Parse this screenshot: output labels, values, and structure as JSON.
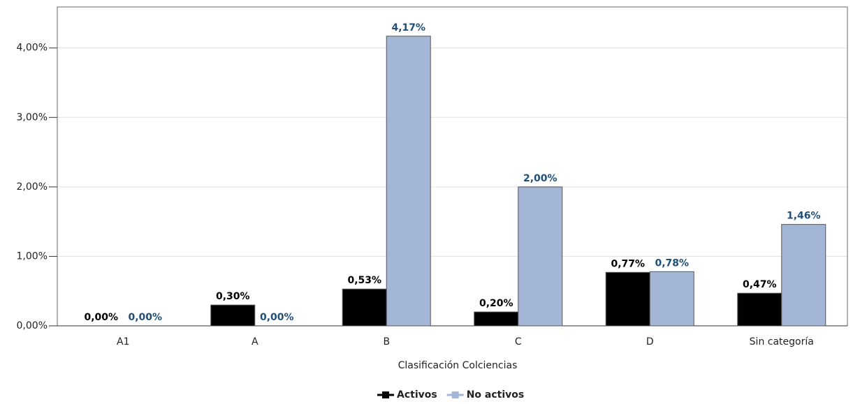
{
  "chart_data": {
    "type": "bar",
    "x_label": "Clasificación Colciencias",
    "categories": [
      "A1",
      "A",
      "B",
      "C",
      "D",
      "Sin categoría"
    ],
    "series": [
      {
        "name": "Activos",
        "color": "#000000",
        "label_color": "#000000",
        "values": [
          0,
          0.3,
          0.53,
          0.2,
          0.77,
          0.47
        ],
        "value_labels": [
          "0,00%",
          "0,30%",
          "0,53%",
          "0,20%",
          "0,77%",
          "0,47%"
        ]
      },
      {
        "name": "No activos",
        "color": "#a3b6d6",
        "label_color": "#1f4e79",
        "values": [
          0,
          0,
          4.17,
          2.0,
          0.78,
          1.46
        ],
        "value_labels": [
          "0,00%",
          "0,00%",
          "4,17%",
          "2,00%",
          "0,78%",
          "1,46%"
        ]
      }
    ],
    "ylim": [
      0,
      4.59
    ],
    "yticks": [
      {
        "value": 0,
        "label": "0,00%"
      },
      {
        "value": 1,
        "label": "1,00%"
      },
      {
        "value": 2,
        "label": "2,00%"
      },
      {
        "value": 3,
        "label": "3,00%"
      },
      {
        "value": 4,
        "label": "4,00%"
      }
    ],
    "grid": true
  }
}
